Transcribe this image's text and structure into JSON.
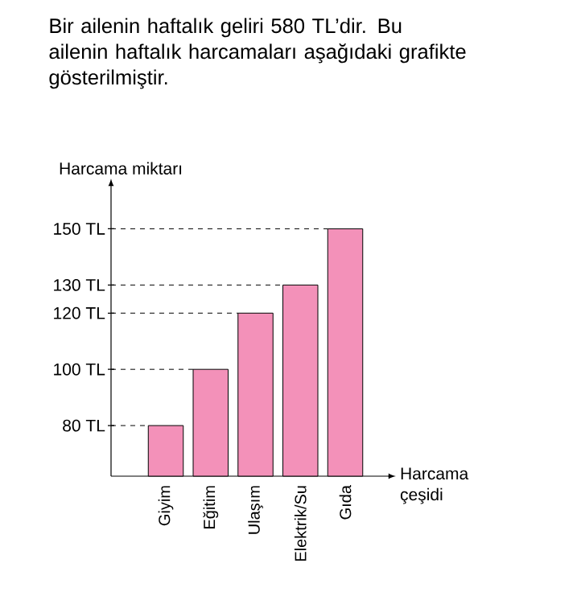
{
  "chart_data": {
    "type": "bar",
    "title": "Bir ailenin haftalık geliri 580 TL’dir. Bu ailenin haftalık harcamaları aşağıdaki grafikte gösterilmiştir.",
    "ylabel": "Harcama miktarı",
    "xlabel": "Harcama çeşidi",
    "categories": [
      "Giyim",
      "Eğitim",
      "Ulaşım",
      "Elektrik/Su",
      "Gıda"
    ],
    "values": [
      80,
      100,
      120,
      130,
      150
    ],
    "color": "#f391b9",
    "ylim": [
      62,
      165
    ],
    "yticks": [
      {
        "value": 80,
        "label": "80 TL"
      },
      {
        "value": 100,
        "label": "100 TL"
      },
      {
        "value": 120,
        "label": "120 TL"
      },
      {
        "value": 130,
        "label": "130 TL"
      },
      {
        "value": 150,
        "label": "150 TL"
      }
    ],
    "ref_lines": [
      {
        "axis": "y",
        "value": 80,
        "line_style": "dashed"
      },
      {
        "axis": "y",
        "value": 100,
        "line_style": "dashed"
      },
      {
        "axis": "y",
        "value": 120,
        "line_style": "dashed"
      },
      {
        "axis": "y",
        "value": 130,
        "line_style": "dashed"
      },
      {
        "axis": "y",
        "value": 150,
        "line_style": "dashed"
      }
    ],
    "grid": false
  }
}
